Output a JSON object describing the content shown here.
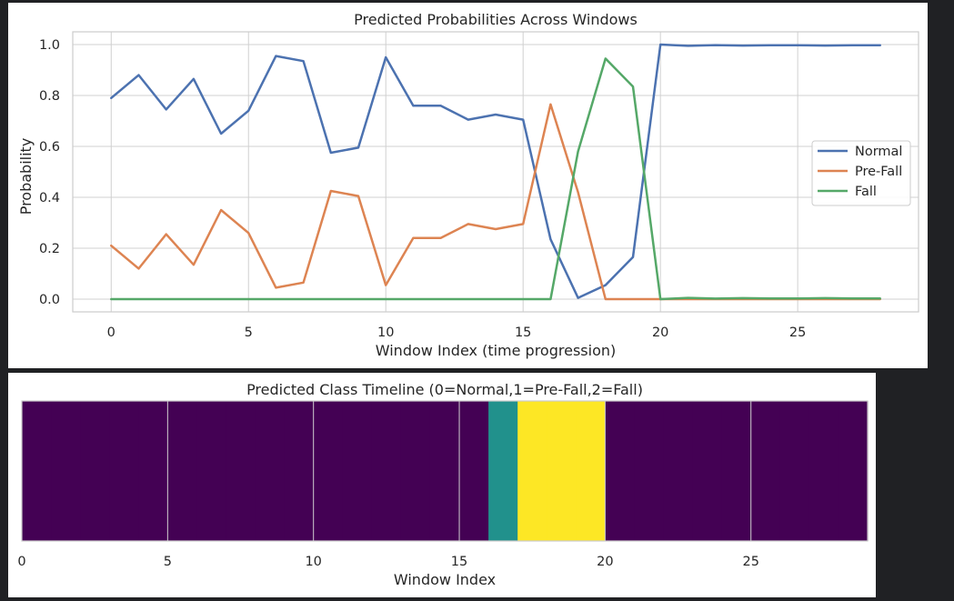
{
  "chart_data": [
    {
      "type": "line",
      "title": "Predicted Probabilities Across Windows",
      "xlabel": "Window Index (time progression)",
      "ylabel": "Probability",
      "xlim": [
        -1.4,
        29.4
      ],
      "ylim": [
        -0.05,
        1.05
      ],
      "xticks": [
        0,
        5,
        10,
        15,
        20,
        25
      ],
      "yticks": [
        0.0,
        0.2,
        0.4,
        0.6,
        0.8,
        1.0
      ],
      "xtick_labels": [
        "0",
        "5",
        "10",
        "15",
        "20",
        "25"
      ],
      "ytick_labels": [
        "0.0",
        "0.2",
        "0.4",
        "0.6",
        "0.8",
        "1.0"
      ],
      "grid": true,
      "legend_position": "center-right",
      "x": [
        0,
        1,
        2,
        3,
        4,
        5,
        6,
        7,
        8,
        9,
        10,
        11,
        12,
        13,
        14,
        15,
        16,
        17,
        18,
        19,
        20,
        21,
        22,
        23,
        24,
        25,
        26,
        27,
        28
      ],
      "series": [
        {
          "name": "Normal",
          "color": "#4c72b0",
          "values": [
            0.79,
            0.88,
            0.745,
            0.865,
            0.65,
            0.74,
            0.955,
            0.935,
            0.575,
            0.595,
            0.95,
            0.76,
            0.76,
            0.705,
            0.725,
            0.705,
            0.235,
            0.005,
            0.055,
            0.165,
            1.0,
            0.995,
            0.998,
            0.996,
            0.997,
            0.997,
            0.996,
            0.997,
            0.997
          ]
        },
        {
          "name": "Pre-Fall",
          "color": "#dd8452",
          "values": [
            0.21,
            0.12,
            0.255,
            0.135,
            0.35,
            0.26,
            0.045,
            0.065,
            0.425,
            0.405,
            0.055,
            0.24,
            0.24,
            0.295,
            0.275,
            0.295,
            0.765,
            0.42,
            0.0,
            0.0,
            0.0,
            0.0,
            0.0,
            0.0,
            0.0,
            0.0,
            0.0,
            0.0,
            0.0
          ]
        },
        {
          "name": "Fall",
          "color": "#55a868",
          "values": [
            0.0,
            0.0,
            0.0,
            0.0,
            0.0,
            0.0,
            0.0,
            0.0,
            0.0,
            0.0,
            0.0,
            0.0,
            0.0,
            0.0,
            0.0,
            0.0,
            0.0,
            0.58,
            0.945,
            0.835,
            0.0,
            0.005,
            0.002,
            0.004,
            0.003,
            0.003,
            0.004,
            0.003,
            0.003
          ]
        }
      ]
    },
    {
      "type": "heatmap",
      "title": "Predicted Class Timeline (0=Normal,1=Pre-Fall,2=Fall)",
      "xlabel": "Window Index",
      "xlim": [
        0,
        29
      ],
      "xticks": [
        0,
        5,
        10,
        15,
        20,
        25
      ],
      "xtick_labels": [
        "0",
        "5",
        "10",
        "15",
        "20",
        "25"
      ],
      "grid": true,
      "classes": [
        0,
        0,
        0,
        0,
        0,
        0,
        0,
        0,
        0,
        0,
        0,
        0,
        0,
        0,
        0,
        0,
        1,
        2,
        2,
        2,
        0,
        0,
        0,
        0,
        0,
        0,
        0,
        0,
        0
      ],
      "class_colors": [
        "#440154",
        "#21918c",
        "#fde725"
      ]
    }
  ]
}
